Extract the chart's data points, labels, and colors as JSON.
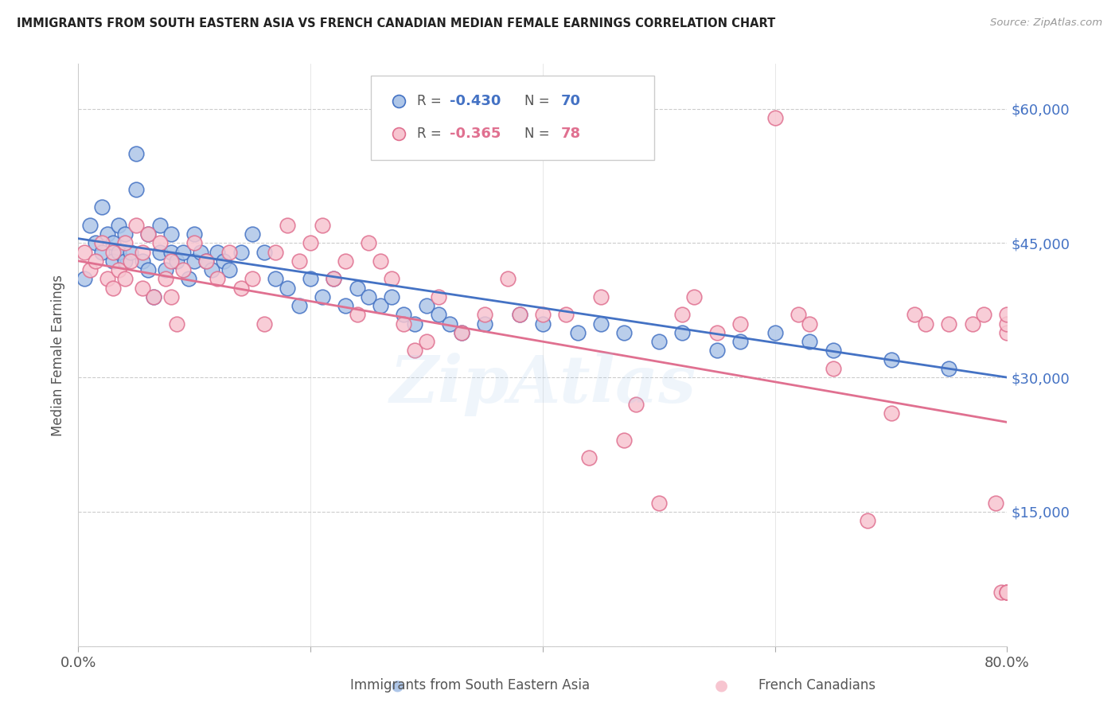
{
  "title": "IMMIGRANTS FROM SOUTH EASTERN ASIA VS FRENCH CANADIAN MEDIAN FEMALE EARNINGS CORRELATION CHART",
  "source": "Source: ZipAtlas.com",
  "ylabel": "Median Female Earnings",
  "yticks": [
    0,
    15000,
    30000,
    45000,
    60000
  ],
  "ytick_labels": [
    "",
    "$15,000",
    "$30,000",
    "$45,000",
    "$60,000"
  ],
  "xlim": [
    0.0,
    0.8
  ],
  "ylim": [
    0,
    65000
  ],
  "legend_blue_r": "-0.430",
  "legend_blue_n": "70",
  "legend_pink_r": "-0.365",
  "legend_pink_n": "78",
  "blue_color": "#aec6e8",
  "pink_color": "#f7c5d0",
  "trendline_blue": "#4472c4",
  "trendline_pink": "#e07090",
  "watermark": "ZipAtlas",
  "blue_scatter_x": [
    0.005,
    0.01,
    0.015,
    0.02,
    0.02,
    0.025,
    0.03,
    0.03,
    0.035,
    0.035,
    0.04,
    0.04,
    0.045,
    0.05,
    0.05,
    0.055,
    0.06,
    0.06,
    0.065,
    0.07,
    0.07,
    0.075,
    0.08,
    0.08,
    0.085,
    0.09,
    0.095,
    0.1,
    0.1,
    0.105,
    0.11,
    0.115,
    0.12,
    0.125,
    0.13,
    0.14,
    0.15,
    0.16,
    0.17,
    0.18,
    0.19,
    0.2,
    0.21,
    0.22,
    0.23,
    0.24,
    0.25,
    0.26,
    0.27,
    0.28,
    0.29,
    0.3,
    0.31,
    0.32,
    0.33,
    0.35,
    0.38,
    0.4,
    0.43,
    0.45,
    0.47,
    0.5,
    0.52,
    0.55,
    0.57,
    0.6,
    0.63,
    0.65,
    0.7,
    0.75
  ],
  "blue_scatter_y": [
    41000,
    47000,
    45000,
    49000,
    44000,
    46000,
    45000,
    43000,
    47000,
    44000,
    46000,
    43000,
    44000,
    51000,
    55000,
    43000,
    46000,
    42000,
    39000,
    47000,
    44000,
    42000,
    46000,
    44000,
    43000,
    44000,
    41000,
    46000,
    43000,
    44000,
    43000,
    42000,
    44000,
    43000,
    42000,
    44000,
    46000,
    44000,
    41000,
    40000,
    38000,
    41000,
    39000,
    41000,
    38000,
    40000,
    39000,
    38000,
    39000,
    37000,
    36000,
    38000,
    37000,
    36000,
    35000,
    36000,
    37000,
    36000,
    35000,
    36000,
    35000,
    34000,
    35000,
    33000,
    34000,
    35000,
    34000,
    33000,
    32000,
    31000
  ],
  "pink_scatter_x": [
    0.005,
    0.01,
    0.015,
    0.02,
    0.025,
    0.03,
    0.03,
    0.035,
    0.04,
    0.04,
    0.045,
    0.05,
    0.055,
    0.055,
    0.06,
    0.065,
    0.07,
    0.075,
    0.08,
    0.08,
    0.085,
    0.09,
    0.1,
    0.11,
    0.12,
    0.13,
    0.14,
    0.15,
    0.16,
    0.17,
    0.18,
    0.19,
    0.2,
    0.21,
    0.22,
    0.23,
    0.24,
    0.25,
    0.26,
    0.27,
    0.28,
    0.29,
    0.3,
    0.31,
    0.33,
    0.35,
    0.37,
    0.38,
    0.4,
    0.42,
    0.44,
    0.45,
    0.47,
    0.48,
    0.5,
    0.52,
    0.53,
    0.55,
    0.57,
    0.6,
    0.62,
    0.63,
    0.65,
    0.68,
    0.7,
    0.72,
    0.73,
    0.75,
    0.77,
    0.78,
    0.79,
    0.795,
    0.8,
    0.8,
    0.8,
    0.8,
    0.8,
    0.8
  ],
  "pink_scatter_y": [
    44000,
    42000,
    43000,
    45000,
    41000,
    44000,
    40000,
    42000,
    45000,
    41000,
    43000,
    47000,
    44000,
    40000,
    46000,
    39000,
    45000,
    41000,
    43000,
    39000,
    36000,
    42000,
    45000,
    43000,
    41000,
    44000,
    40000,
    41000,
    36000,
    44000,
    47000,
    43000,
    45000,
    47000,
    41000,
    43000,
    37000,
    45000,
    43000,
    41000,
    36000,
    33000,
    34000,
    39000,
    35000,
    37000,
    41000,
    37000,
    37000,
    37000,
    21000,
    39000,
    23000,
    27000,
    16000,
    37000,
    39000,
    35000,
    36000,
    59000,
    37000,
    36000,
    31000,
    14000,
    26000,
    37000,
    36000,
    36000,
    36000,
    37000,
    16000,
    6000,
    6000,
    35000,
    36000,
    37000,
    6000,
    6000
  ]
}
